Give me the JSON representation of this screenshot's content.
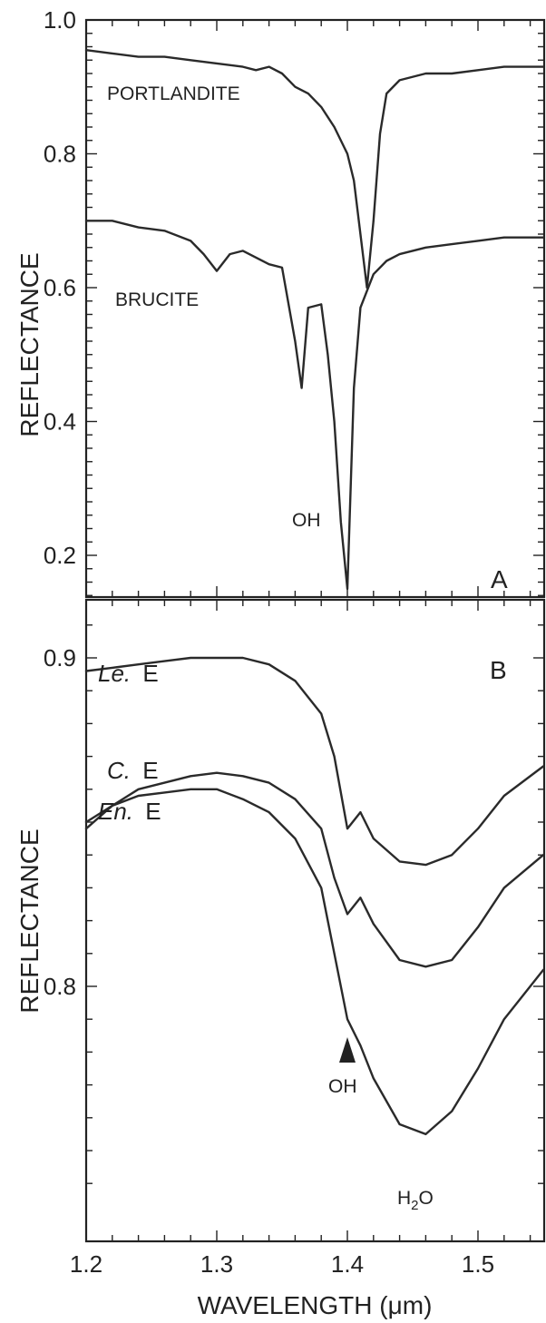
{
  "chart_data": [
    {
      "panel": "A",
      "type": "line",
      "xlabel": "",
      "ylabel": "REFLECTANCE",
      "xlim": [
        1.2,
        1.55
      ],
      "ylim": [
        0.1,
        1.0
      ],
      "yticks": [
        0.2,
        0.4,
        0.6,
        0.8,
        1.0
      ],
      "ytick_labels": [
        "0.2",
        "0.4",
        "0.6",
        "0.8",
        "1.0"
      ],
      "series": [
        {
          "name": "PORTLANDITE",
          "x": [
            1.2,
            1.22,
            1.24,
            1.26,
            1.28,
            1.3,
            1.32,
            1.33,
            1.34,
            1.35,
            1.36,
            1.37,
            1.38,
            1.39,
            1.4,
            1.405,
            1.41,
            1.415,
            1.42,
            1.425,
            1.43,
            1.44,
            1.46,
            1.48,
            1.5,
            1.52,
            1.55
          ],
          "y": [
            0.955,
            0.95,
            0.945,
            0.945,
            0.94,
            0.935,
            0.93,
            0.925,
            0.93,
            0.92,
            0.9,
            0.89,
            0.87,
            0.84,
            0.8,
            0.76,
            0.68,
            0.6,
            0.7,
            0.83,
            0.89,
            0.91,
            0.92,
            0.92,
            0.925,
            0.93,
            0.93
          ]
        },
        {
          "name": "BRUCITE",
          "x": [
            1.2,
            1.22,
            1.24,
            1.26,
            1.28,
            1.29,
            1.3,
            1.31,
            1.32,
            1.33,
            1.34,
            1.35,
            1.36,
            1.365,
            1.37,
            1.38,
            1.385,
            1.39,
            1.395,
            1.4,
            1.405,
            1.41,
            1.42,
            1.43,
            1.44,
            1.46,
            1.48,
            1.5,
            1.52,
            1.55
          ],
          "y": [
            0.7,
            0.7,
            0.69,
            0.685,
            0.67,
            0.65,
            0.625,
            0.65,
            0.655,
            0.645,
            0.635,
            0.63,
            0.52,
            0.45,
            0.57,
            0.575,
            0.5,
            0.4,
            0.25,
            0.15,
            0.45,
            0.57,
            0.62,
            0.64,
            0.65,
            0.66,
            0.665,
            0.67,
            0.675,
            0.675
          ]
        }
      ],
      "annotations": [
        "PORTLANDITE",
        "BRUCITE",
        "OH",
        "A"
      ]
    },
    {
      "panel": "B",
      "type": "line",
      "xlabel": "WAVELENGTH (μm)",
      "ylabel": "REFLECTANCE",
      "xlim": [
        1.2,
        1.55
      ],
      "xticks": [
        1.2,
        1.3,
        1.4,
        1.5
      ],
      "xtick_labels": [
        "1.2",
        "1.3",
        "1.4",
        "1.5"
      ],
      "ylim": [
        0.735,
        0.912
      ],
      "yticks": [
        0.8,
        0.9
      ],
      "ytick_labels": [
        "0.8",
        "0.9"
      ],
      "series": [
        {
          "x": [
            1.2,
            1.22,
            1.24,
            1.26,
            1.28,
            1.3,
            1.32,
            1.34,
            1.36,
            1.38,
            1.39,
            1.4,
            1.41,
            1.42,
            1.44,
            1.46,
            1.48,
            1.5,
            1.52,
            1.55
          ],
          "y": [
            0.896,
            0.897,
            0.898,
            0.899,
            0.9,
            0.9,
            0.9,
            0.898,
            0.893,
            0.883,
            0.87,
            0.848,
            0.853,
            0.845,
            0.838,
            0.837,
            0.84,
            0.848,
            0.858,
            0.867
          ]
        },
        {
          "x": [
            1.2,
            1.22,
            1.24,
            1.26,
            1.28,
            1.3,
            1.32,
            1.34,
            1.36,
            1.38,
            1.39,
            1.4,
            1.41,
            1.42,
            1.44,
            1.46,
            1.48,
            1.5,
            1.52,
            1.55
          ],
          "y": [
            0.85,
            0.855,
            0.86,
            0.862,
            0.864,
            0.865,
            0.864,
            0.862,
            0.857,
            0.848,
            0.833,
            0.822,
            0.827,
            0.819,
            0.808,
            0.806,
            0.808,
            0.818,
            0.83,
            0.84
          ]
        },
        {
          "x": [
            1.2,
            1.22,
            1.24,
            1.26,
            1.28,
            1.3,
            1.32,
            1.34,
            1.36,
            1.38,
            1.39,
            1.4,
            1.41,
            1.42,
            1.44,
            1.46,
            1.48,
            1.5,
            1.52,
            1.55
          ],
          "y": [
            0.848,
            0.855,
            0.858,
            0.859,
            0.86,
            0.86,
            0.857,
            0.853,
            0.845,
            0.83,
            0.81,
            0.79,
            0.782,
            0.772,
            0.758,
            0.755,
            0.762,
            0.775,
            0.79,
            0.805
          ]
        }
      ],
      "annotations": [
        "Le.",
        "E",
        "C.",
        "E",
        "En.",
        "E",
        "OH",
        "H",
        "2",
        "O",
        "B"
      ]
    }
  ],
  "labels": {
    "ylabel_a": "REFLECTANCE",
    "ylabel_b": "REFLECTANCE",
    "xlabel": "WAVELENGTH (μm)",
    "panel_a": "A",
    "panel_b": "B",
    "portlandite": "PORTLANDITE",
    "brucite": "BRUCITE",
    "oh_a": "OH",
    "le_italic": "Le.",
    "le_e": "E",
    "c_italic": "C.",
    "c_e": "E",
    "en_italic": "En.",
    "en_e": "E",
    "oh_b": "OH",
    "h2o_h": "H",
    "h2o_2": "2",
    "h2o_o": "O"
  }
}
